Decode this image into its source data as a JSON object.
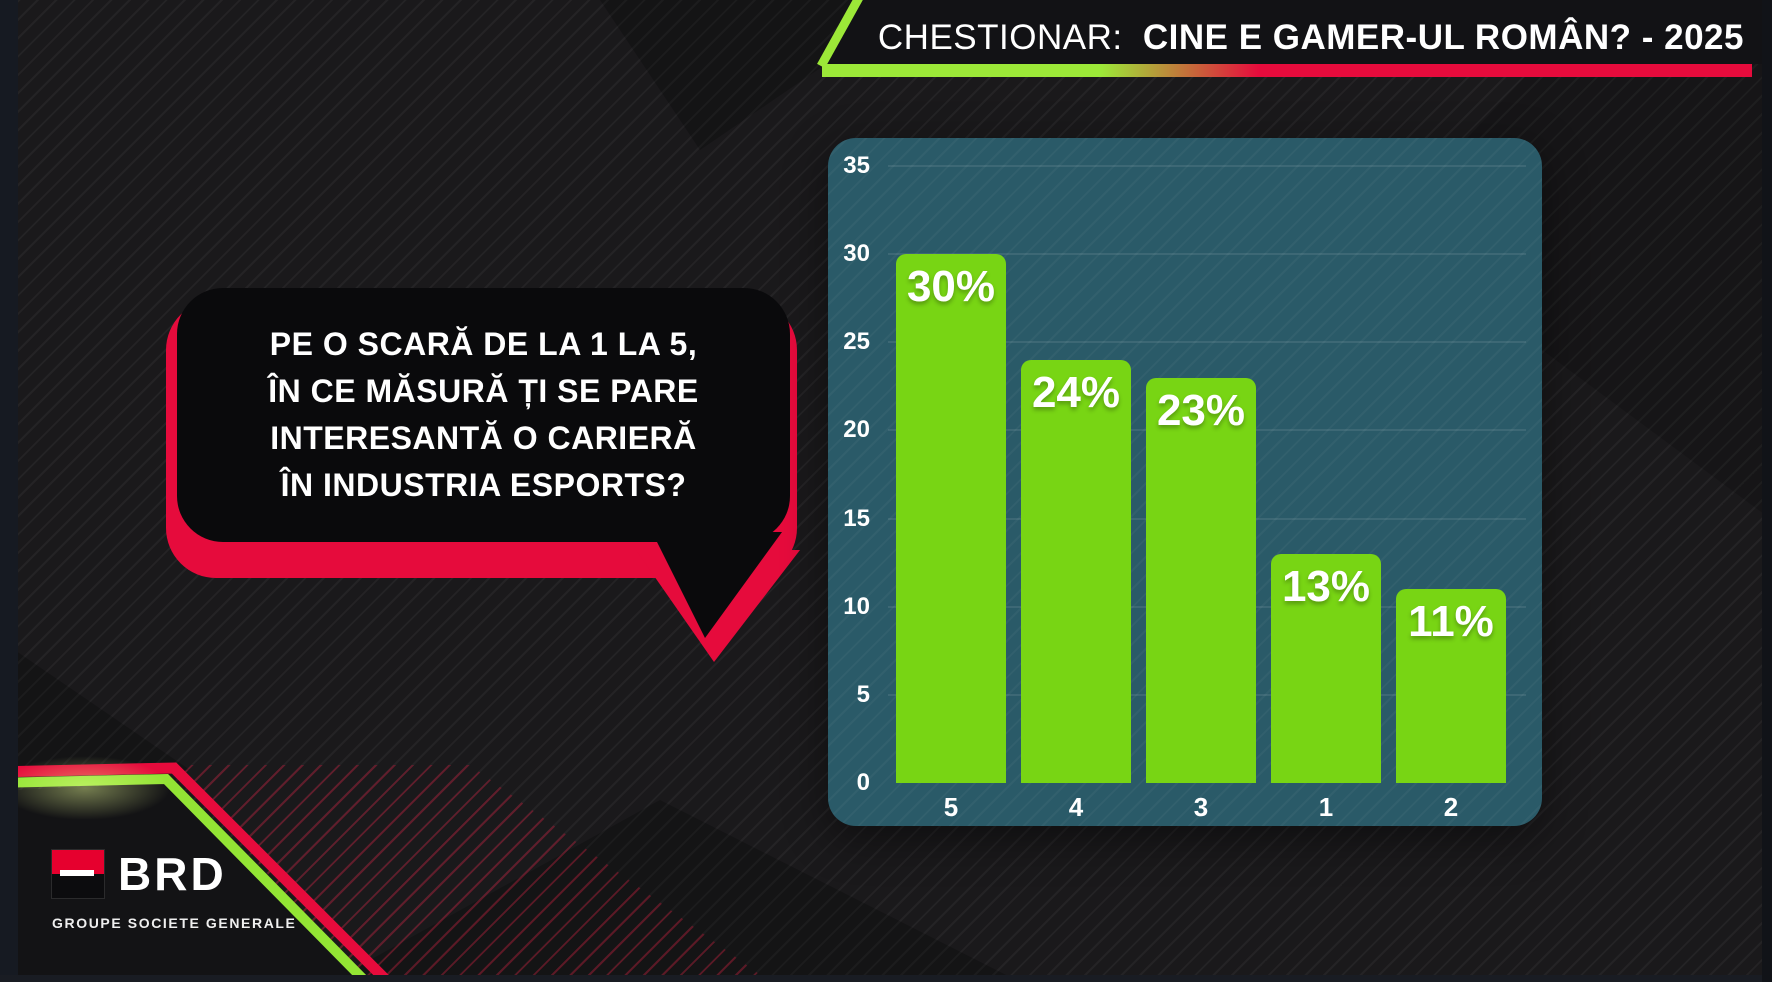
{
  "header": {
    "label_prefix": "CHESTIONAR:",
    "title": "CINE E GAMER-UL ROMÂN? - 2025"
  },
  "question": {
    "lines": [
      "PE O SCARĂ DE LA 1 LA 5,",
      "ÎN CE MĂSURĂ ȚI SE PARE",
      "INTERESANTĂ O CARIERĂ",
      "ÎN INDUSTRIA ESPORTS?"
    ]
  },
  "chart_data": {
    "type": "bar",
    "title": "",
    "xlabel": "",
    "ylabel": "",
    "categories": [
      "5",
      "4",
      "3",
      "1",
      "2"
    ],
    "values": [
      30,
      24,
      23,
      13,
      11
    ],
    "data_labels": [
      "30%",
      "24%",
      "23%",
      "13%",
      "11%"
    ],
    "ylim": [
      0,
      35
    ],
    "yticks": [
      0,
      5,
      10,
      15,
      20,
      25,
      30,
      35
    ],
    "grid": "horizontal",
    "legend": false,
    "bar_color": "#78d514",
    "panel_color": "#2a5a68",
    "tick_color": "#ffffff"
  },
  "branding": {
    "logo_name": "BRD",
    "logo_tagline": "GROUPE SOCIETE GENERALE"
  },
  "colors": {
    "accent_green": "#93e434",
    "accent_red": "#e60b3c",
    "brd_red": "#e6002e",
    "bubble_black": "#0a0a0c",
    "header_band": "#121215"
  }
}
